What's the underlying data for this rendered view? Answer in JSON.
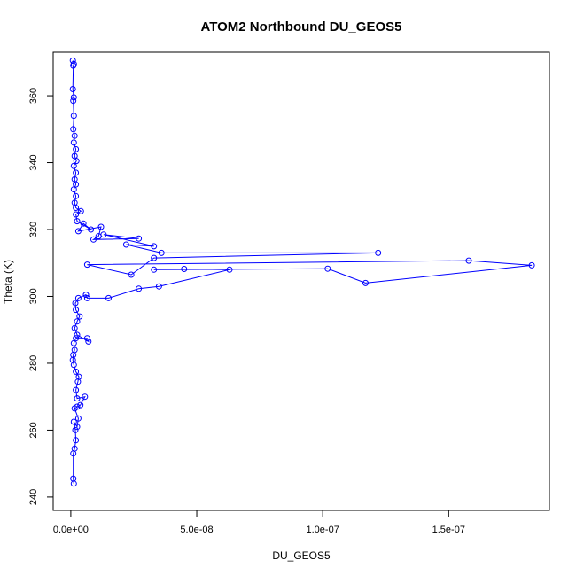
{
  "chart_data": {
    "type": "scatter",
    "title": "ATOM2 Northbound DU_GEOS5",
    "xlabel": "DU_GEOS5",
    "ylabel": "Theta (K)",
    "xlim": [
      -7e-09,
      1.9e-07
    ],
    "ylim": [
      236,
      373
    ],
    "x_ticks": [
      0,
      5e-08,
      1e-07,
      1.5e-07
    ],
    "x_tick_labels": [
      "0.0e+00",
      "5.0e-08",
      "1.0e-07",
      "1.5e-07"
    ],
    "y_ticks": [
      240,
      260,
      280,
      300,
      320,
      340,
      360
    ],
    "y_tick_labels": [
      "240",
      "260",
      "280",
      "300",
      "320",
      "340",
      "360"
    ],
    "grid": false,
    "legend": "none",
    "colors": {
      "series": "#0000ff"
    },
    "series": [
      {
        "connected": true,
        "marker": "open-circle",
        "points": [
          [
            1.2e-09,
            244
          ],
          [
            1e-09,
            245.5
          ],
          [
            1e-09,
            253
          ],
          [
            1.5e-09,
            254.5
          ],
          [
            2e-09,
            257
          ],
          [
            1.8e-09,
            260
          ],
          [
            1.2e-09,
            262.5
          ],
          [
            2.5e-09,
            261
          ],
          [
            3e-09,
            263.5
          ],
          [
            1.5e-09,
            266.5
          ],
          [
            2.5e-09,
            267
          ],
          [
            3.8e-09,
            267.5
          ],
          [
            5.6e-09,
            270
          ],
          [
            2.5e-09,
            269.5
          ],
          [
            2e-09,
            272
          ],
          [
            2.8e-09,
            274.5
          ],
          [
            3.2e-09,
            276
          ],
          [
            2e-09,
            277.5
          ],
          [
            1.2e-09,
            279.5
          ],
          [
            8e-10,
            281
          ],
          [
            1e-09,
            282.5
          ],
          [
            1.5e-09,
            284
          ],
          [
            1.2e-09,
            286
          ],
          [
            2e-09,
            287.5
          ],
          [
            6.5e-09,
            287.5
          ],
          [
            7e-09,
            286.5
          ],
          [
            2.5e-09,
            288.5
          ],
          [
            1.5e-09,
            290.5
          ],
          [
            2.5e-09,
            292.5
          ],
          [
            3.5e-09,
            294
          ],
          [
            2e-09,
            296
          ],
          [
            1.8e-09,
            298
          ],
          [
            3e-09,
            299.5
          ],
          [
            6e-09,
            300.5
          ],
          [
            6.5e-09,
            299.5
          ],
          [
            1.5e-08,
            299.5
          ],
          [
            2.7e-08,
            302.3
          ],
          [
            3.5e-08,
            303.0
          ],
          [
            6.3e-08,
            308.0
          ],
          [
            4.5e-08,
            308.2
          ],
          [
            3.3e-08,
            308.0
          ],
          [
            1.02e-07,
            308.3
          ],
          [
            1.17e-07,
            304.0
          ],
          [
            1.83e-07,
            309.3
          ],
          [
            1.58e-07,
            310.7
          ],
          [
            6.5e-09,
            309.5
          ],
          [
            2.4e-08,
            306.5
          ],
          [
            3.3e-08,
            311.5
          ],
          [
            1.22e-07,
            313.0
          ],
          [
            3.6e-08,
            313.0
          ],
          [
            2.2e-08,
            315.5
          ],
          [
            3.3e-08,
            315.0
          ],
          [
            1.3e-08,
            318.5
          ],
          [
            2.7e-08,
            317.3
          ],
          [
            9e-09,
            317.0
          ],
          [
            1.1e-08,
            318.0
          ],
          [
            1.2e-08,
            320.8
          ],
          [
            3e-09,
            319.5
          ],
          [
            5e-09,
            321.8
          ],
          [
            8e-09,
            320.0
          ],
          [
            2.5e-09,
            322.5
          ],
          [
            2e-09,
            324.5
          ],
          [
            4e-09,
            325.5
          ],
          [
            2e-09,
            326.5
          ],
          [
            1.5e-09,
            328
          ],
          [
            2e-09,
            330
          ],
          [
            1.2e-09,
            332
          ],
          [
            2e-09,
            333.5
          ],
          [
            1.5e-09,
            335
          ],
          [
            2e-09,
            337
          ],
          [
            1.2e-09,
            339
          ],
          [
            2.2e-09,
            340.5
          ],
          [
            1.5e-09,
            342
          ],
          [
            2e-09,
            344
          ],
          [
            1.2e-09,
            346
          ],
          [
            1.5e-09,
            348
          ],
          [
            1e-09,
            350
          ],
          [
            1.2e-09,
            354
          ],
          [
            1e-09,
            358.5
          ],
          [
            1.2e-09,
            359.5
          ],
          [
            8e-10,
            362
          ],
          [
            1e-09,
            369
          ],
          [
            1.2e-09,
            369.5
          ],
          [
            8e-10,
            370.5
          ]
        ]
      }
    ]
  }
}
